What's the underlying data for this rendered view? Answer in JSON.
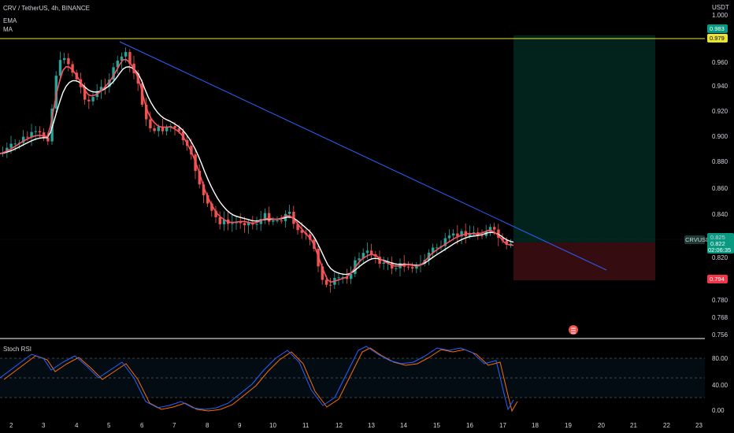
{
  "header": {
    "symbol_line": "CRV / TetherUS, 4h, BINANCE",
    "ind1": "EMA",
    "ind2": "MA"
  },
  "currency": "USDT",
  "price_axis": {
    "labels": [
      "1.000",
      "0.960",
      "0.940",
      "0.920",
      "0.900",
      "0.880",
      "0.860",
      "0.840",
      "0.820",
      "0.780",
      "0.768",
      "0.756"
    ]
  },
  "price_tags": {
    "target_top": "0.983",
    "horizontal_line": "0.979",
    "symbol": "CRVUSDT",
    "last_price": "0.822",
    "countdown": "02:06:35",
    "entry_hidden": "0.825",
    "stop": "0.794"
  },
  "time_axis": {
    "labels": [
      "2",
      "3",
      "4",
      "5",
      "6",
      "7",
      "8",
      "9",
      "10",
      "11",
      "12",
      "13",
      "14",
      "15",
      "16",
      "17",
      "18",
      "19",
      "20",
      "21",
      "22",
      "23"
    ]
  },
  "rsi": {
    "title": "Stoch RSI",
    "labels": [
      "80.00",
      "40.00",
      "0.00"
    ]
  },
  "colors": {
    "bull": "#26a69a",
    "bear": "#ef5350",
    "ema": "#f7525f",
    "ma": "#ffffff",
    "trendline": "#2962ff",
    "hline": "#e8e337",
    "target_zone": "rgba(8,153,129,0.22)",
    "stop_zone": "rgba(242,54,69,0.22)",
    "rsi_k": "#2962ff",
    "rsi_d": "#ff6d00"
  }
}
